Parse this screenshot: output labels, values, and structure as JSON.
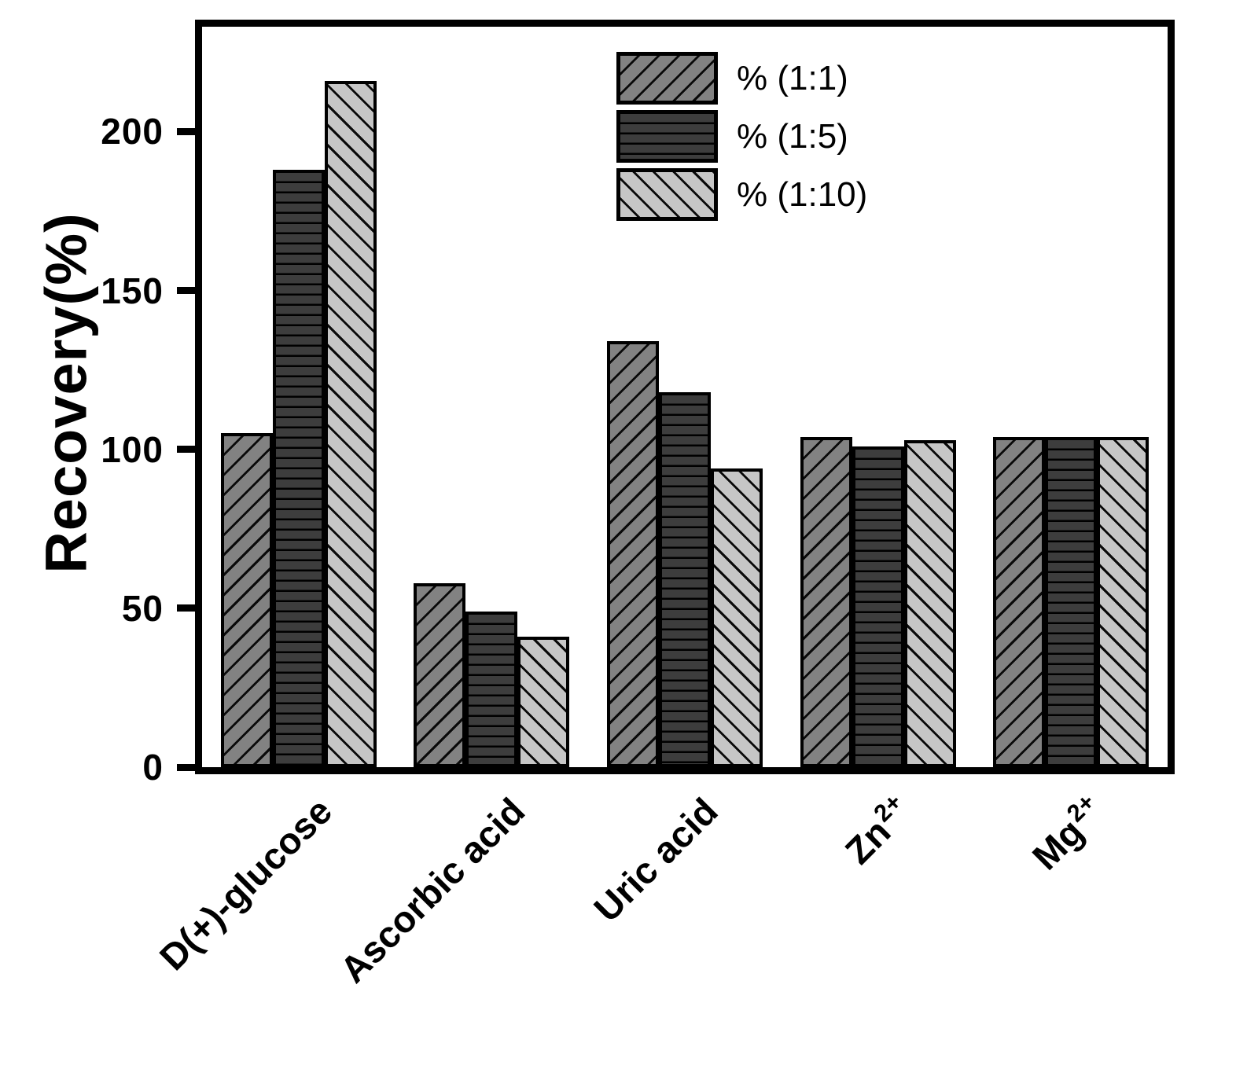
{
  "y_axis": {
    "label": "Recovery(%)",
    "ticks": [
      0,
      50,
      100,
      150,
      200
    ]
  },
  "chart_data": {
    "type": "bar",
    "title": "",
    "xlabel": "",
    "ylabel": "Recovery(%)",
    "ylim": [
      0,
      233
    ],
    "yticks": [
      0,
      50,
      100,
      150,
      200
    ],
    "grid": false,
    "legend_position": "inside-top-center-right",
    "categories": [
      "D(+)-glucose",
      "Ascorbic acid",
      "Uric acid",
      "Zn2+",
      "Mg2+"
    ],
    "categories_display": [
      {
        "base": "D(+)-glucose",
        "sup": ""
      },
      {
        "base": "Ascorbic acid",
        "sup": ""
      },
      {
        "base": "Uric acid",
        "sup": ""
      },
      {
        "base": "Zn",
        "sup": "2+"
      },
      {
        "base": "Mg",
        "sup": "2+"
      }
    ],
    "series": [
      {
        "name": "% (1:1)",
        "hatch": "/",
        "fill": "#828282",
        "values": [
          105,
          58,
          134,
          104,
          104
        ]
      },
      {
        "name": "% (1:5)",
        "hatch": "-",
        "fill": "#3d3d3d",
        "values": [
          188,
          49,
          118,
          101,
          104
        ]
      },
      {
        "name": "% (1:10)",
        "hatch": "\\",
        "fill": "#c6c6c6",
        "values": [
          216,
          41,
          94,
          103,
          104
        ]
      }
    ],
    "colors": {
      "axis": "#000000",
      "hatch_line": "#0a0a0a",
      "background": "#ffffff"
    }
  }
}
